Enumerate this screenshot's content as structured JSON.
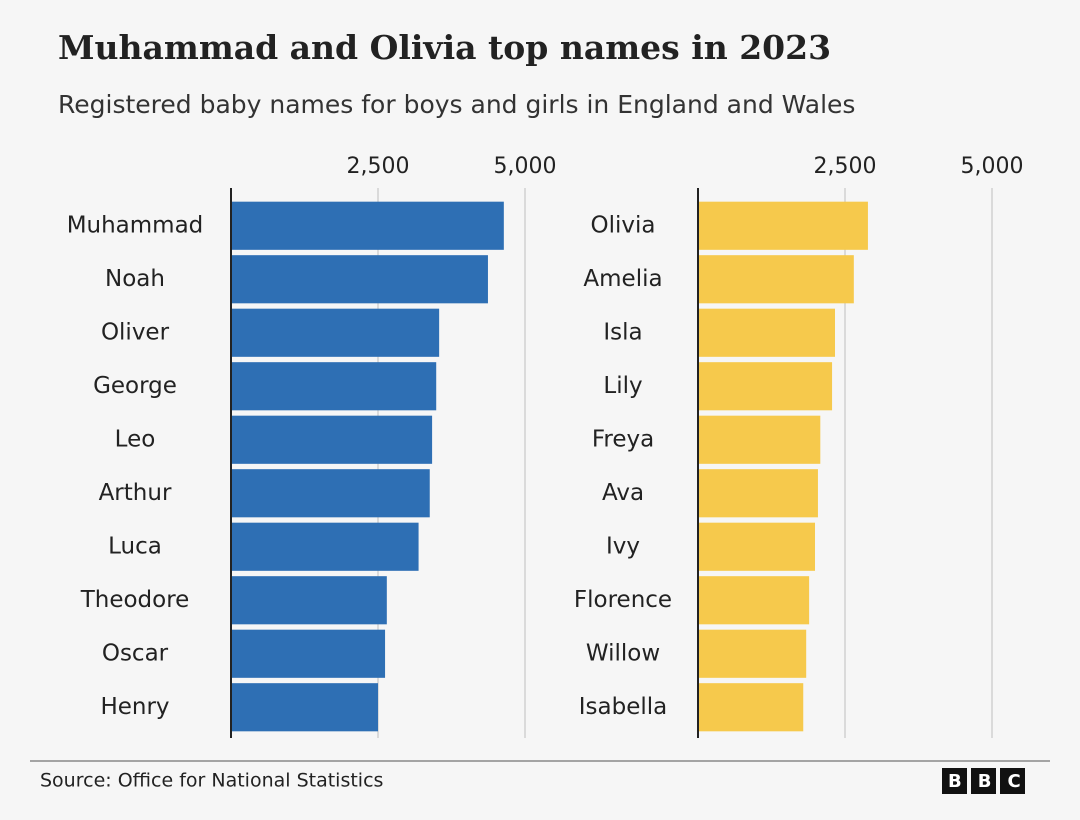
{
  "title": "Muhammad and Olivia top names in 2023",
  "subtitle": "Registered baby names for boys and girls in England and Wales",
  "source": "Source: Office for National Statistics",
  "logo": "BBC",
  "chart_data": [
    {
      "type": "bar",
      "orientation": "horizontal",
      "categories": [
        "Muhammad",
        "Noah",
        "Oliver",
        "George",
        "Leo",
        "Arthur",
        "Luca",
        "Theodore",
        "Oscar",
        "Henry"
      ],
      "values": [
        4640,
        4370,
        3540,
        3490,
        3420,
        3380,
        3190,
        2650,
        2620,
        2500
      ],
      "color": "#2e6fb4",
      "xlim": [
        0,
        5000
      ],
      "xticks": [
        {
          "value": 2500,
          "label": "2,500"
        },
        {
          "value": 5000,
          "label": "5,000"
        }
      ],
      "grid": true
    },
    {
      "type": "bar",
      "orientation": "horizontal",
      "categories": [
        "Olivia",
        "Amelia",
        "Isla",
        "Lily",
        "Freya",
        "Ava",
        "Ivy",
        "Florence",
        "Willow",
        "Isabella"
      ],
      "values": [
        2890,
        2650,
        2330,
        2280,
        2080,
        2040,
        1990,
        1890,
        1840,
        1790
      ],
      "color": "#f6c94c",
      "xlim": [
        0,
        5000
      ],
      "xticks": [
        {
          "value": 2500,
          "label": "2,500"
        },
        {
          "value": 5000,
          "label": "5,000"
        }
      ],
      "grid": true
    }
  ]
}
